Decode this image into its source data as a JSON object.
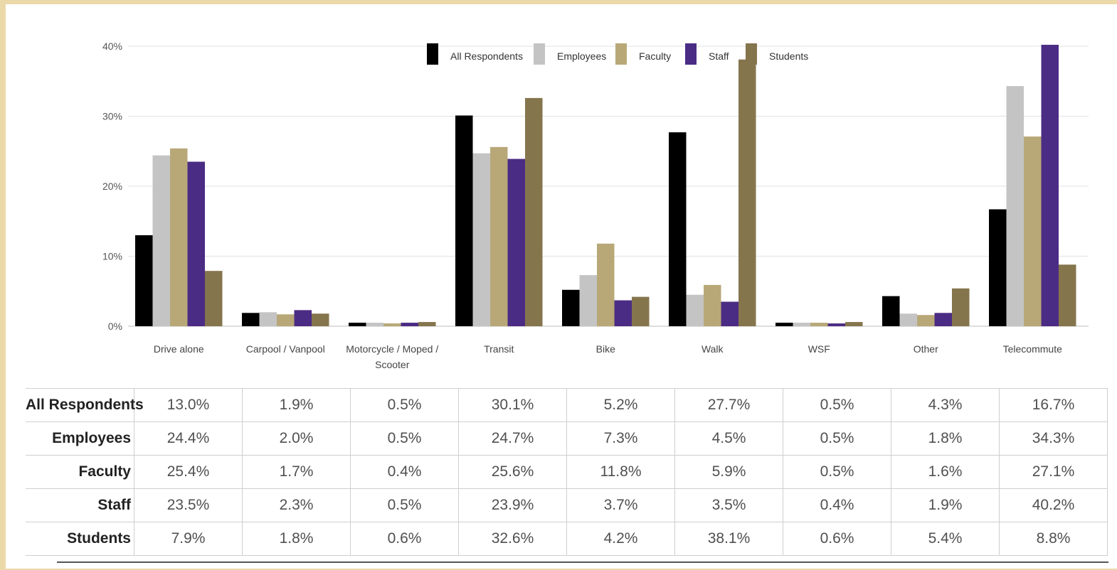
{
  "chart_data": {
    "type": "bar",
    "categories": [
      "Drive alone",
      "Carpool / Vanpool",
      "Motorcycle / Moped / Scooter",
      "Transit",
      "Bike",
      "Walk",
      "WSF",
      "Other",
      "Telecommute"
    ],
    "category_lines": [
      [
        "Drive alone"
      ],
      [
        "Carpool / Vanpool"
      ],
      [
        "Motorcycle / Moped /",
        "Scooter"
      ],
      [
        "Transit"
      ],
      [
        "Bike"
      ],
      [
        "Walk"
      ],
      [
        "WSF"
      ],
      [
        "Other"
      ],
      [
        "Telecommute"
      ]
    ],
    "series": [
      {
        "name": "All Respondents",
        "color": "#000000",
        "values": [
          13.0,
          1.9,
          0.5,
          30.1,
          5.2,
          27.7,
          0.5,
          4.3,
          16.7
        ]
      },
      {
        "name": "Employees",
        "color": "#c4c4c4",
        "values": [
          24.4,
          2.0,
          0.5,
          24.7,
          7.3,
          4.5,
          0.5,
          1.8,
          34.3
        ]
      },
      {
        "name": "Faculty",
        "color": "#b8a878",
        "values": [
          25.4,
          1.7,
          0.4,
          25.6,
          11.8,
          5.9,
          0.5,
          1.6,
          27.1
        ]
      },
      {
        "name": "Staff",
        "color": "#4b2c84",
        "values": [
          23.5,
          2.3,
          0.5,
          23.9,
          3.7,
          3.5,
          0.4,
          1.9,
          40.2
        ]
      },
      {
        "name": "Students",
        "color": "#85754d",
        "values": [
          7.9,
          1.8,
          0.6,
          32.6,
          4.2,
          38.1,
          0.6,
          5.4,
          8.8
        ]
      }
    ],
    "y_ticks": [
      "0%",
      "10%",
      "20%",
      "30%",
      "40%"
    ],
    "ylim": [
      0,
      40
    ],
    "grid": true,
    "legend_position": "top",
    "table": {
      "rows": [
        {
          "label": "All Respondents",
          "cells": [
            "13.0%",
            "1.9%",
            "0.5%",
            "30.1%",
            "5.2%",
            "27.7%",
            "0.5%",
            "4.3%",
            "16.7%"
          ]
        },
        {
          "label": "Employees",
          "cells": [
            "24.4%",
            "2.0%",
            "0.5%",
            "24.7%",
            "7.3%",
            "4.5%",
            "0.5%",
            "1.8%",
            "34.3%"
          ]
        },
        {
          "label": "Faculty",
          "cells": [
            "25.4%",
            "1.7%",
            "0.4%",
            "25.6%",
            "11.8%",
            "5.9%",
            "0.5%",
            "1.6%",
            "27.1%"
          ]
        },
        {
          "label": "Staff",
          "cells": [
            "23.5%",
            "2.3%",
            "0.5%",
            "23.9%",
            "3.7%",
            "3.5%",
            "0.4%",
            "1.9%",
            "40.2%"
          ]
        },
        {
          "label": "Students",
          "cells": [
            "7.9%",
            "1.8%",
            "0.6%",
            "32.6%",
            "4.2%",
            "38.1%",
            "0.6%",
            "5.4%",
            "8.8%"
          ]
        }
      ]
    }
  }
}
